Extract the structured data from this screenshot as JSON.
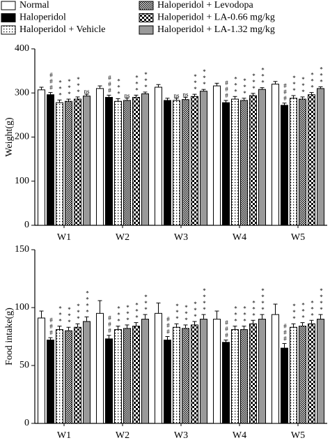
{
  "chart_data": [
    {
      "type": "bar",
      "ylabel": "Weight(g)",
      "categories": [
        "W1",
        "W2",
        "W3",
        "W4",
        "W5"
      ],
      "ylim": [
        0,
        400
      ],
      "yticks": [
        0,
        100,
        200,
        300,
        400
      ],
      "legend": "top",
      "series": [
        {
          "name": "Normal",
          "color": "#ffffff",
          "pattern": "solid",
          "values": [
            307,
            310,
            313,
            316,
            320
          ],
          "errors": [
            6,
            6,
            6,
            6,
            6
          ],
          "annotations": [
            null,
            null,
            null,
            null,
            null
          ]
        },
        {
          "name": "Haloperidol",
          "color": "#000000",
          "pattern": "solid",
          "values": [
            296,
            290,
            283,
            278,
            272
          ],
          "errors": [
            5,
            5,
            5,
            5,
            5
          ],
          "annotations": [
            "###",
            "###",
            null,
            "###",
            "###"
          ]
        },
        {
          "name": "Haloperidol + Vehicle",
          "color": "#ffffff",
          "pattern": "dots",
          "values": [
            278,
            281,
            283,
            286,
            288
          ],
          "errors": [
            6,
            6,
            5,
            6,
            6
          ],
          "annotations": [
            "***",
            "***",
            "ns",
            "***",
            "***"
          ]
        },
        {
          "name": "Haloperidol + Levodopa",
          "color": "#000000",
          "pattern": "checker-fine",
          "values": [
            281,
            283,
            285,
            283,
            286
          ],
          "errors": [
            5,
            5,
            5,
            5,
            5
          ],
          "annotations": [
            "***",
            "ns",
            "ns",
            "***",
            "***"
          ]
        },
        {
          "name": "Haloperidol + LA-0.66 mg/kg",
          "color": "#000000",
          "pattern": "checker",
          "values": [
            286,
            290,
            292,
            294,
            296
          ],
          "errors": [
            5,
            5,
            5,
            5,
            5
          ],
          "annotations": [
            "***",
            "***",
            "***",
            "***",
            "***"
          ]
        },
        {
          "name": "Haloperidol + LA-1.32 mg/kg",
          "color": "#9a9a9a",
          "pattern": "solid",
          "values": [
            293,
            298,
            304,
            308,
            310
          ],
          "errors": [
            4,
            4,
            4,
            4,
            4
          ],
          "annotations": [
            "ns",
            "***",
            "***",
            "***",
            "***"
          ]
        }
      ]
    },
    {
      "type": "bar",
      "ylabel": "Food intake(g)",
      "categories": [
        "W1",
        "W2",
        "W3",
        "W4",
        "W5"
      ],
      "ylim": [
        0,
        150
      ],
      "yticks": [
        0,
        50,
        100,
        150
      ],
      "series": [
        {
          "color": "#ffffff",
          "pattern": "solid",
          "values": [
            91,
            95,
            95,
            90,
            94
          ],
          "errors": [
            6,
            11,
            9,
            7,
            9
          ],
          "annotations": [
            null,
            null,
            null,
            null,
            null
          ]
        },
        {
          "color": "#000000",
          "pattern": "solid",
          "values": [
            72,
            73,
            72,
            70,
            65
          ],
          "errors": [
            2,
            3,
            3,
            2,
            4
          ],
          "annotations": [
            "###",
            "###",
            "###",
            "###",
            "###"
          ]
        },
        {
          "color": "#ffffff",
          "pattern": "dots",
          "values": [
            81,
            81,
            83,
            81,
            83
          ],
          "errors": [
            3,
            3,
            3,
            3,
            3
          ],
          "annotations": [
            "***",
            "***",
            "***",
            "***",
            "***"
          ]
        },
        {
          "color": "#000000",
          "pattern": "checker-fine",
          "values": [
            80,
            82,
            82,
            81,
            84
          ],
          "errors": [
            3,
            3,
            3,
            3,
            3
          ],
          "annotations": [
            "***",
            "***",
            "***",
            "***",
            "***"
          ]
        },
        {
          "color": "#000000",
          "pattern": "checker",
          "values": [
            83,
            84,
            85,
            86,
            86
          ],
          "errors": [
            3,
            3,
            3,
            3,
            3
          ],
          "annotations": [
            "***",
            "***",
            "***",
            "***",
            "***"
          ]
        },
        {
          "color": "#9a9a9a",
          "pattern": "solid",
          "values": [
            88,
            90,
            90,
            90,
            90
          ],
          "errors": [
            4,
            4,
            4,
            4,
            4
          ],
          "annotations": [
            "****",
            "***",
            "****",
            "****",
            "****"
          ]
        }
      ]
    }
  ]
}
